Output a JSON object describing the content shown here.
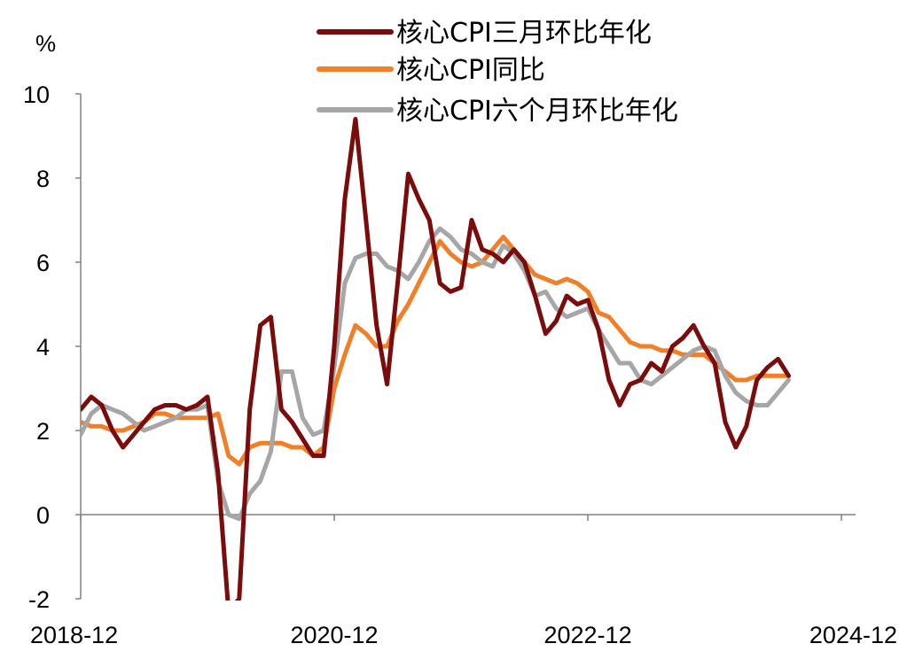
{
  "chart_data": {
    "type": "line",
    "unit_label": "%",
    "x_tick_labels": [
      "2018-12",
      "2020-12",
      "2022-12",
      "2024-12"
    ],
    "x_tick_months": [
      0,
      24,
      48,
      72
    ],
    "xlim_months": [
      0,
      73
    ],
    "ylim": [
      -2,
      10
    ],
    "y_ticks": [
      -2,
      0,
      2,
      4,
      6,
      8,
      10
    ],
    "grid": false,
    "legend_position": "top",
    "series": [
      {
        "name": "核心CPI三月环比年化",
        "color": "#7B0C0C",
        "values": [
          2.5,
          2.8,
          2.6,
          2.0,
          1.6,
          1.9,
          2.2,
          2.5,
          2.6,
          2.6,
          2.5,
          2.6,
          2.8,
          1.0,
          -2.3,
          -2.0,
          2.5,
          4.5,
          4.7,
          2.5,
          2.2,
          1.8,
          1.4,
          1.4,
          4.0,
          7.5,
          9.4,
          7.0,
          4.5,
          3.1,
          5.5,
          8.1,
          7.5,
          7.0,
          5.5,
          5.3,
          5.4,
          7.0,
          6.3,
          6.2,
          6.0,
          6.3,
          6.0,
          5.2,
          4.3,
          4.6,
          5.2,
          5.0,
          5.1,
          4.4,
          3.2,
          2.6,
          3.1,
          3.2,
          3.6,
          3.4,
          4.0,
          4.2,
          4.5,
          4.0,
          3.6,
          2.2,
          1.6,
          2.1,
          3.2,
          3.5,
          3.7,
          3.3
        ]
      },
      {
        "name": "核心CPI同比",
        "color": "#F07F28",
        "values": [
          2.2,
          2.1,
          2.1,
          2.0,
          2.0,
          2.1,
          2.2,
          2.4,
          2.4,
          2.3,
          2.3,
          2.3,
          2.3,
          2.4,
          1.4,
          1.2,
          1.6,
          1.7,
          1.7,
          1.7,
          1.6,
          1.6,
          1.4,
          1.6,
          3.0,
          3.8,
          4.5,
          4.3,
          4.0,
          4.0,
          4.6,
          5.0,
          5.5,
          6.0,
          6.5,
          6.2,
          6.0,
          5.9,
          6.0,
          6.3,
          6.6,
          6.3,
          6.0,
          5.7,
          5.6,
          5.5,
          5.6,
          5.5,
          5.3,
          4.8,
          4.7,
          4.4,
          4.1,
          4.0,
          4.0,
          3.9,
          3.9,
          3.8,
          3.8,
          3.8,
          3.6,
          3.4,
          3.2,
          3.2,
          3.3,
          3.3,
          3.3,
          3.3
        ]
      },
      {
        "name": "核心CPI六个月环比年化",
        "color": "#A6A6A6",
        "values": [
          1.9,
          2.4,
          2.6,
          2.5,
          2.4,
          2.2,
          2.0,
          2.1,
          2.2,
          2.3,
          2.5,
          2.5,
          2.6,
          0.8,
          0.0,
          -0.1,
          0.5,
          0.8,
          1.5,
          3.4,
          3.4,
          2.3,
          1.9,
          2.0,
          3.5,
          5.5,
          6.1,
          6.2,
          6.2,
          5.9,
          5.8,
          5.6,
          6.0,
          6.5,
          6.8,
          6.6,
          6.3,
          6.2,
          6.0,
          5.9,
          6.4,
          6.2,
          5.8,
          5.2,
          5.3,
          4.9,
          4.7,
          4.8,
          4.9,
          4.4,
          4.0,
          3.6,
          3.6,
          3.2,
          3.1,
          3.3,
          3.5,
          3.7,
          3.9,
          4.0,
          3.9,
          3.3,
          2.9,
          2.7,
          2.6,
          2.6,
          2.9,
          3.2
        ]
      }
    ]
  }
}
